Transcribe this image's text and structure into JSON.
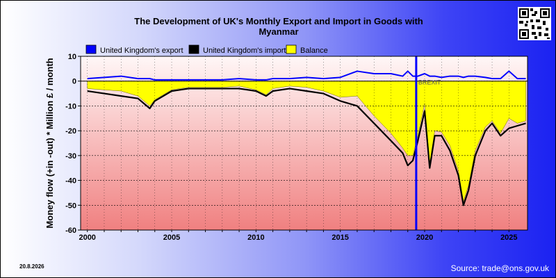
{
  "chart_data": {
    "type": "line",
    "title": "The Development of UK's Monthly Export and Import in Goods with Myanmar",
    "ylabel": "Money flow (+in -out) * Million £ / month",
    "xlabel": "",
    "xlim": [
      1999.6,
      2026.1
    ],
    "ylim": [
      -60,
      10
    ],
    "x_ticks": [
      "2000",
      "2005",
      "2010",
      "2015",
      "2020",
      "2025"
    ],
    "y_ticks": [
      "10",
      "0",
      "-10",
      "-20",
      "-30",
      "-40",
      "-50",
      "-60"
    ],
    "grid": true,
    "legend_position": "top-left",
    "marker_line": {
      "x": 2019.5,
      "label": "BREXIT"
    },
    "x": [
      2000,
      2001,
      2002,
      2003,
      2003.7,
      2004,
      2005,
      2006,
      2007,
      2008,
      2009,
      2010,
      2010.6,
      2011,
      2012,
      2013,
      2014,
      2015,
      2016,
      2017,
      2018,
      2018.7,
      2019,
      2019.3,
      2019.6,
      2020,
      2020.3,
      2020.6,
      2021,
      2021.5,
      2022,
      2022.3,
      2022.6,
      2023,
      2023.6,
      2024,
      2024.5,
      2025,
      2025.5,
      2026
    ],
    "series": [
      {
        "name": "United Kingdom's export",
        "color": "#0000ff",
        "values": [
          1,
          1.5,
          2,
          1,
          1,
          0.5,
          0.5,
          0.5,
          0.5,
          0.5,
          1,
          0.5,
          0.5,
          1,
          1,
          1.5,
          1,
          1.5,
          4,
          3,
          3,
          2,
          4,
          2,
          2,
          3,
          2,
          2,
          1.5,
          2,
          2,
          1.5,
          2,
          2,
          1.5,
          1,
          1,
          4,
          1,
          1
        ]
      },
      {
        "name": "United Kingdom's import",
        "color": "#000000",
        "values": [
          -4,
          -5,
          -6,
          -7,
          -11,
          -8,
          -4,
          -3,
          -3,
          -3,
          -3,
          -4,
          -6,
          -4,
          -3,
          -4,
          -5,
          -8,
          -10,
          -17,
          -24,
          -29,
          -34,
          -32,
          -24,
          -12,
          -35,
          -22,
          -22,
          -28,
          -38,
          -50,
          -44,
          -30,
          -20,
          -17,
          -22,
          -19,
          -18,
          -17
        ]
      },
      {
        "name": "Balance",
        "color": "#ffff00",
        "values": [
          -3,
          -3.5,
          -4,
          -6,
          -10,
          -7.5,
          -3.5,
          -2.5,
          -2.5,
          -2.5,
          -2,
          -3.5,
          -5.5,
          -3,
          -2,
          -2.5,
          -4,
          -6.5,
          -6,
          -14,
          -21,
          -27,
          -30,
          -30,
          -22,
          -9,
          -33,
          -20,
          -20.5,
          -26,
          -36,
          -48.5,
          -42,
          -28,
          -18.5,
          -16,
          -21,
          -15,
          -17,
          -16
        ]
      }
    ]
  },
  "footer": {
    "date": "20.8.2026",
    "source": "Source: trade@ons.gov.uk"
  }
}
